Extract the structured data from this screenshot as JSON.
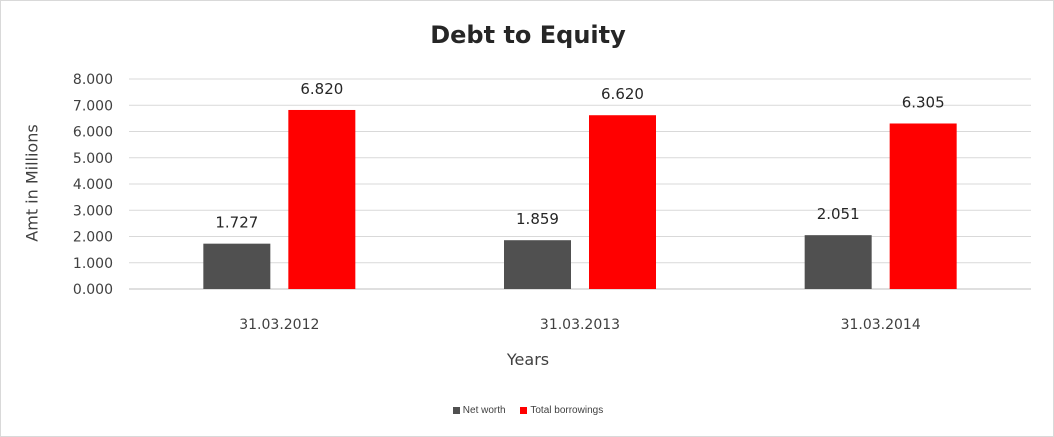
{
  "chart_data": {
    "type": "bar",
    "title": "Debt to Equity",
    "xlabel": "Years",
    "ylabel": "Amt in Millions",
    "categories": [
      "31.03.2012",
      "31.03.2013",
      "31.03.2014"
    ],
    "series": [
      {
        "name": "Net worth",
        "values": [
          1.727,
          1.859,
          2.051
        ],
        "labels": [
          "1.727",
          "1.859",
          "2.051"
        ],
        "color": "#505050"
      },
      {
        "name": "Total borrowings",
        "values": [
          6.82,
          6.62,
          6.305
        ],
        "labels": [
          "6.820",
          "6.620",
          "6.305"
        ],
        "color": "#ff0000"
      }
    ],
    "ylim": [
      0,
      8
    ],
    "yticks": [
      "0.000",
      "1.000",
      "2.000",
      "3.000",
      "4.000",
      "5.000",
      "6.000",
      "7.000",
      "8.000"
    ],
    "grid": true,
    "legend_position": "bottom"
  }
}
